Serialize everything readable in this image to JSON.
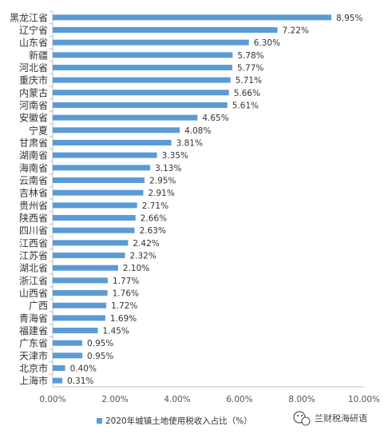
{
  "chart_data": {
    "type": "bar",
    "orientation": "horizontal",
    "categories": [
      "黑龙江省",
      "辽宁省",
      "山东省",
      "新疆",
      "河北省",
      "重庆市",
      "内蒙古",
      "河南省",
      "安徽省",
      "宁夏",
      "甘肃省",
      "湖南省",
      "海南省",
      "云南省",
      "吉林省",
      "贵州省",
      "陕西省",
      "四川省",
      "江西省",
      "江苏省",
      "湖北省",
      "浙江省",
      "山西省",
      "广西",
      "青海省",
      "福建省",
      "广东省",
      "天津市",
      "北京市",
      "上海市"
    ],
    "series": [
      {
        "name": "2020年城镇土地使用税收入占比（%）",
        "values": [
          8.95,
          7.22,
          6.3,
          5.78,
          5.77,
          5.71,
          5.66,
          5.61,
          4.65,
          4.08,
          3.81,
          3.35,
          3.13,
          2.95,
          2.91,
          2.71,
          2.66,
          2.63,
          2.42,
          2.32,
          2.1,
          1.77,
          1.76,
          1.72,
          1.69,
          1.45,
          0.95,
          0.95,
          0.4,
          0.31
        ],
        "value_labels": [
          "8.95%",
          "7.22%",
          "6.30%",
          "5.78%",
          "5.77%",
          "5.71%",
          "5.66%",
          "5.61%",
          "4.65%",
          "4.08%",
          "3.81%",
          "3.35%",
          "3.13%",
          "2.95%",
          "2.91%",
          "2.71%",
          "2.66%",
          "2.63%",
          "2.42%",
          "2.32%",
          "2.10%",
          "1.77%",
          "1.76%",
          "1.72%",
          "1.69%",
          "1.45%",
          "0.95%",
          "0.95%",
          "0.40%",
          "0.31%"
        ]
      }
    ],
    "xlim": [
      0,
      10
    ],
    "xticks": [
      "0.00%",
      "2.00%",
      "4.00%",
      "6.00%",
      "8.00%",
      "10.00%"
    ],
    "grid": false,
    "legend": "bottom",
    "colors": {
      "bar": "#5b9bd5",
      "axis": "#bfbfbf"
    }
  },
  "watermark": {
    "text": "兰财税海研语",
    "icon": "wechat-icon"
  }
}
